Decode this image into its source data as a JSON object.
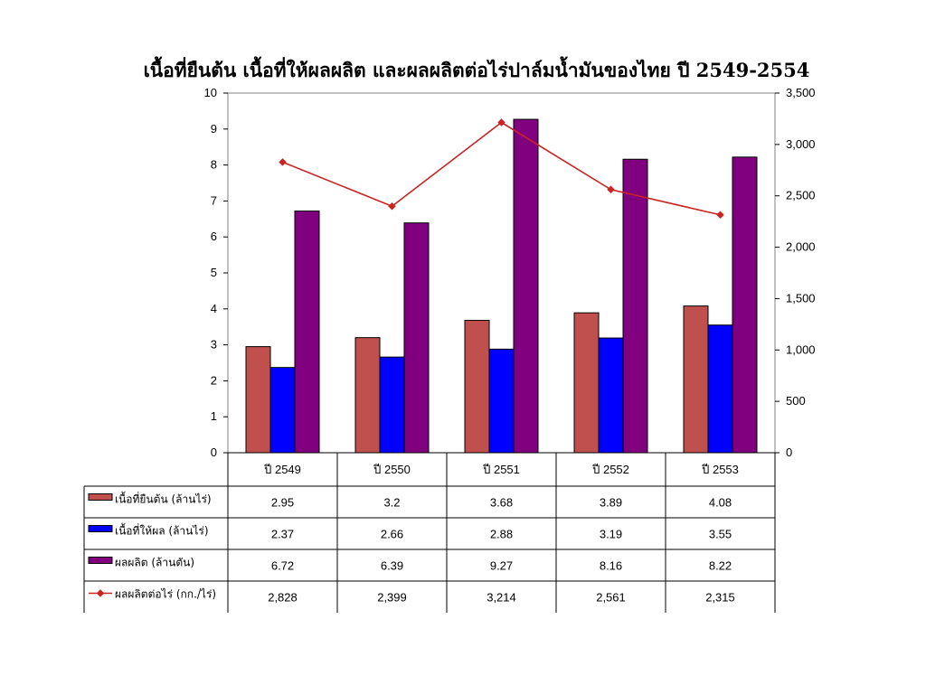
{
  "title": "เนื้อที่ยืนต้น เนื้อที่ให้ผลผลิต และผลผลิตต่อไร่ปาล์มน้ำมันของไทย ปี 2549-2554",
  "chart_data": {
    "type": "bar",
    "categories": [
      "ปี 2549",
      "ปี 2550",
      "ปี 2551",
      "ปี 2552",
      "ปี 2553"
    ],
    "series": [
      {
        "name": "เนื้อที่ยืนต้น (ล้านไร่)",
        "type": "bar",
        "axis": "left",
        "color": "#c0504d",
        "values": [
          2.95,
          3.2,
          3.68,
          3.89,
          4.08
        ],
        "labels": [
          "2.95",
          "3.2",
          "3.68",
          "3.89",
          "4.08"
        ]
      },
      {
        "name": "เนื้อที่ให้ผล (ล้านไร่)",
        "type": "bar",
        "axis": "left",
        "color": "#0000ff",
        "values": [
          2.37,
          2.66,
          2.88,
          3.19,
          3.55
        ],
        "labels": [
          "2.37",
          "2.66",
          "2.88",
          "3.19",
          "3.55"
        ]
      },
      {
        "name": "ผลผลิต (ล้านตัน)",
        "type": "bar",
        "axis": "left",
        "color": "#800080",
        "values": [
          6.72,
          6.39,
          9.27,
          8.16,
          8.22
        ],
        "labels": [
          "6.72",
          "6.39",
          "9.27",
          "8.16",
          "8.22"
        ]
      },
      {
        "name": "ผลผลิตต่อไร่ (กก./ไร่)",
        "type": "line",
        "axis": "right",
        "color": "#cc2222",
        "values": [
          2828,
          2399,
          3214,
          2561,
          2315
        ],
        "labels": [
          "2,828",
          "2,399",
          "3,214",
          "2,561",
          "2,315"
        ]
      }
    ],
    "y_left": {
      "min": 0,
      "max": 10,
      "ticks": [
        "0",
        "1",
        "2",
        "3",
        "4",
        "5",
        "6",
        "7",
        "8",
        "9",
        "10"
      ]
    },
    "y_right": {
      "min": 0,
      "max": 3500,
      "ticks": [
        "0",
        "500",
        "1,000",
        "1,500",
        "2,000",
        "2,500",
        "3,000",
        "3,500"
      ]
    },
    "grid": false,
    "legend": "data table below plot"
  }
}
